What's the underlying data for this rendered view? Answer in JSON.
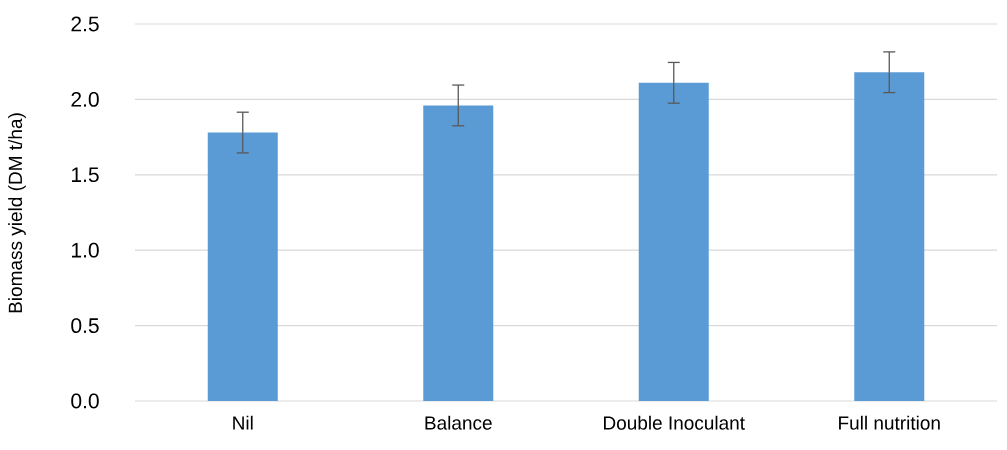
{
  "chart_data": {
    "type": "bar",
    "ylabel": "Biomass yield (DM t/ha)",
    "categories": [
      "Nil",
      "Balance",
      "Double Inoculant",
      "Full nutrition"
    ],
    "values": [
      1.78,
      1.96,
      2.11,
      2.18
    ],
    "errors": [
      0.135,
      0.135,
      0.135,
      0.135
    ],
    "color": "#5b9bd5",
    "ylim": [
      0,
      2.5
    ],
    "yticks": [
      {
        "value": 0,
        "label": "0.0"
      },
      {
        "value": 0.5,
        "label": "0.5"
      },
      {
        "value": 1,
        "label": "1.0"
      },
      {
        "value": 1.5,
        "label": "1.5"
      },
      {
        "value": 2,
        "label": "2.0"
      },
      {
        "value": 2.5,
        "label": "2.5"
      }
    ],
    "grid": "y"
  }
}
